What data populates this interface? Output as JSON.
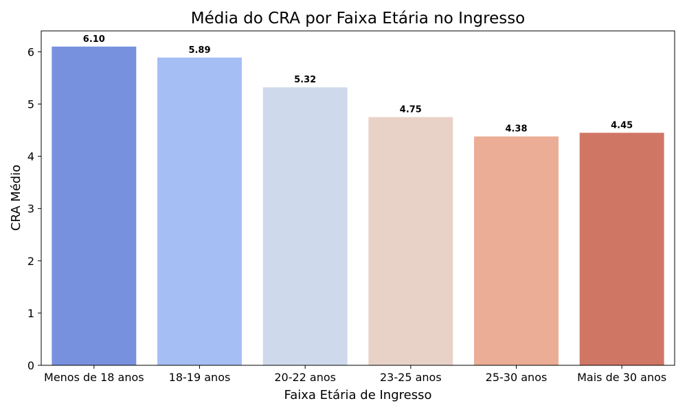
{
  "chart_data": {
    "type": "bar",
    "title": "Média do CRA por Faixa Etária no Ingresso",
    "xlabel": "Faixa Etária de Ingresso",
    "ylabel": "CRA Médio",
    "categories": [
      "Menos de 18 anos",
      "18-19 anos",
      "20-22 anos",
      "23-25 anos",
      "25-30 anos",
      "Mais de 30 anos"
    ],
    "values": [
      6.1,
      5.89,
      5.32,
      4.75,
      4.38,
      4.45
    ],
    "value_labels": [
      "6.10",
      "5.89",
      "5.32",
      "4.75",
      "4.38",
      "4.45"
    ],
    "bar_colors": [
      "#7891DE",
      "#A5BEF3",
      "#CED9EB",
      "#E8D2C8",
      "#EBAD96",
      "#D07665"
    ],
    "ylim": [
      0,
      6.4
    ],
    "yticks": [
      0,
      1,
      2,
      3,
      4,
      5,
      6
    ],
    "grid": false,
    "legend": "none"
  }
}
